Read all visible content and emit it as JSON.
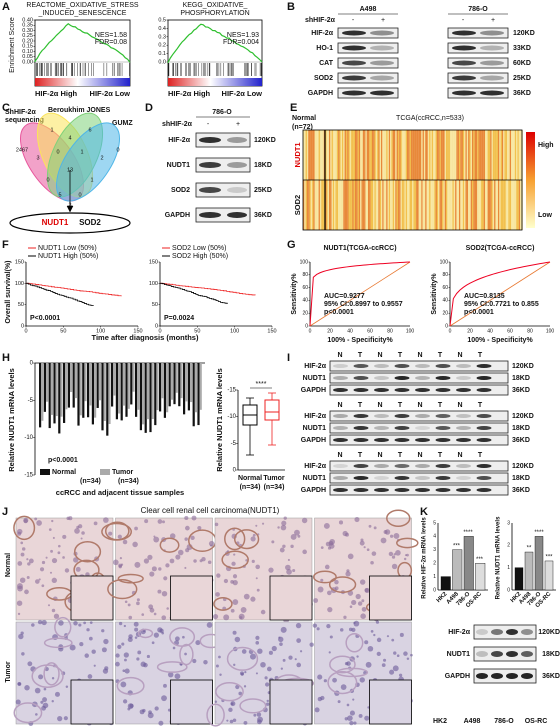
{
  "A": {
    "label": "A",
    "y_axis": "Enrichment Score",
    "high": "HIF-2α High",
    "low": "HIF-2α Low",
    "plots": [
      {
        "title": [
          "REACTOME_OXIDATIVE_STRESS",
          "_INDUCED_SENESCENCE"
        ],
        "nes": "NES=1.58",
        "fdr": "FDR=0.08",
        "yticks": [
          "0.40",
          "0.35",
          "0.30",
          "0.25",
          "0.20",
          "0.15",
          "0.10",
          "0.05",
          "0.00"
        ]
      },
      {
        "title": [
          "KEGG_OXIDATIVE_",
          "PHOSPHORYLATION"
        ],
        "nes": "NES=1.93",
        "fdr": "FDR=0.004",
        "yticks": [
          "0.5",
          "0.4",
          "0.3",
          "0.2",
          "0.1",
          "0.0"
        ]
      }
    ]
  },
  "B": {
    "label": "B",
    "cell_lines": [
      "A498",
      "786-O"
    ],
    "sh": "shHIF-2α",
    "signs": [
      "-",
      "+"
    ],
    "rows": [
      {
        "protein": "HIF-2α",
        "kd": "120KD"
      },
      {
        "protein": "HO-1",
        "kd": "33KD"
      },
      {
        "protein": "CAT",
        "kd": "60KD"
      },
      {
        "protein": "SOD2",
        "kd": "25KD"
      },
      {
        "protein": "GAPDH",
        "kd": "36KD"
      }
    ]
  },
  "C": {
    "label": "C",
    "sets": [
      "ShHIF-2α",
      "sequencing",
      "Beroukhim JONES",
      "GUMZ"
    ],
    "numbers": [
      "2467",
      "1",
      "4",
      "6",
      "0",
      "3",
      "0",
      "1",
      "2",
      "13",
      "0",
      "1",
      "5",
      "0",
      "3"
    ],
    "genes": [
      "NUDT1",
      "SOD2"
    ]
  },
  "D": {
    "label": "D",
    "cell_line": "786-O",
    "sh": "shHIF-2α",
    "signs": [
      "-",
      "+"
    ],
    "rows": [
      {
        "protein": "HIF-2α",
        "kd": "120KD"
      },
      {
        "protein": "NUDT1",
        "kd": "18KD"
      },
      {
        "protein": "SOD2",
        "kd": "25KD"
      },
      {
        "protein": "GAPDH",
        "kd": "36KD"
      }
    ]
  },
  "E": {
    "label": "E",
    "normal": "Normal",
    "normal_n": "(n=72)",
    "title": "TCGA(ccRCC,n=533)",
    "rows": [
      "NUDT1",
      "SOD2"
    ],
    "high": "High",
    "low": "Low"
  },
  "F": {
    "label": "F",
    "y_axis": "Overall survival(%)",
    "x_axis": "Time after diagnosis (months)",
    "yticks": [
      "150",
      "100",
      "50",
      "0"
    ],
    "xticks": [
      "0",
      "50",
      "100",
      "150"
    ],
    "plots": [
      {
        "legend": [
          "NUDT1 Low (50%)",
          "NUDT1 High (50%)"
        ],
        "p": "P<0.0001"
      },
      {
        "legend": [
          "SOD2 Low (50%)",
          "SOD2 High (50%)"
        ],
        "p": "P=0.0024"
      }
    ]
  },
  "G": {
    "label": "G",
    "y_axis": "Sensitivity%",
    "x_axis": "100% - Specificity%",
    "yticks": [
      "100",
      "80",
      "60",
      "40",
      "20",
      "0"
    ],
    "xticks": [
      "0",
      "20",
      "40",
      "60",
      "80",
      "100"
    ],
    "plots": [
      {
        "title": "NUDT1(TCGA-ccRCC)",
        "auc": "AUC=0.9277",
        "ci": "95% CI:0.8997 to 0.9557",
        "p": "p<0.0001"
      },
      {
        "title": "SOD2(TCGA-ccRCC)",
        "auc": "AUC=0.8135",
        "ci": "95% CI:0.7721 to 0.855",
        "p": "p<0.0001"
      }
    ]
  },
  "H": {
    "label": "H",
    "y_axis": "Relative NUDT1 mRNA levels",
    "yticks": [
      "0",
      "-5",
      "-10",
      "-15"
    ],
    "p": "p<0.0001",
    "legend": [
      "Normal",
      "Tumor"
    ],
    "n": "(n=34)",
    "x_axis": "ccRCC and adjacent tissue samples",
    "box": {
      "yticks": [
        "0",
        "-5",
        "-10",
        "-15"
      ],
      "sig": "****",
      "categories": [
        "Normal",
        "Tumor"
      ],
      "n": "(n=34)"
    }
  },
  "I": {
    "label": "I",
    "header": [
      "N",
      "T",
      "N",
      "T",
      "N",
      "T",
      "N",
      "T"
    ],
    "rows": [
      {
        "protein": "HIF-2α",
        "kd": "120KD"
      },
      {
        "protein": "NUDT1",
        "kd": "18KD"
      },
      {
        "protein": "GAPDH",
        "kd": "36KD"
      }
    ]
  },
  "J": {
    "label": "J",
    "title": "Clear cell renal cell carcinoma(NUDT1)",
    "rows": [
      "Normal",
      "Tumor"
    ]
  },
  "K": {
    "label": "K",
    "y_axes": [
      "Relative HIF-2α mRNA levels",
      "Relative NUDT1 mRNA levels"
    ],
    "yticks": [
      [
        "5",
        "4",
        "3",
        "2",
        "1",
        "0"
      ],
      [
        "3",
        "2",
        "1",
        "0"
      ]
    ],
    "cells": [
      "HK2",
      "A498",
      "786-O",
      "OS-RC"
    ],
    "sig": [
      [
        "***",
        "****",
        "***"
      ],
      [
        "**",
        "****",
        "***"
      ]
    ],
    "rows": [
      {
        "protein": "HIF-2α",
        "kd": "120KD"
      },
      {
        "protein": "NUDT1",
        "kd": "18KD"
      },
      {
        "protein": "GAPDH",
        "kd": "36KD"
      }
    ]
  }
}
